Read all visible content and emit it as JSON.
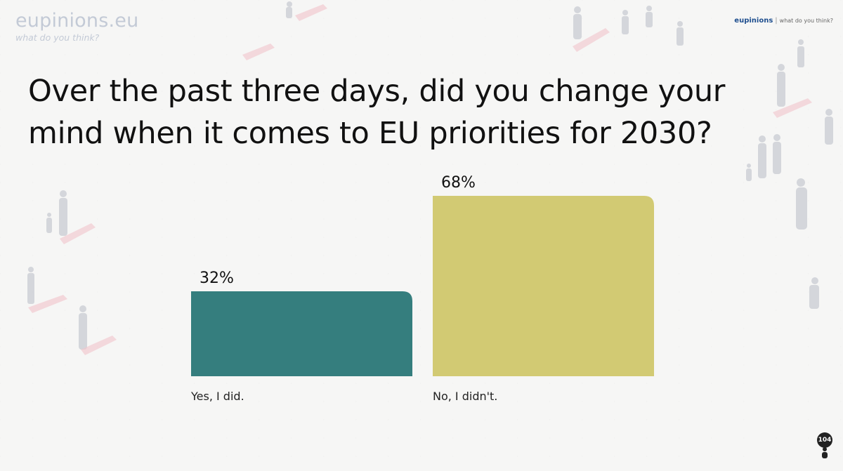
{
  "header": {
    "logo_name": "eupinions.eu",
    "logo_tagline": "what do you think?",
    "corner_brand": "eupinions",
    "corner_sep": "|",
    "corner_tag": "what do you think?"
  },
  "title": "Over the past three days, did you change your mind when it comes to EU priorities for 2030?",
  "viewer_count": "104",
  "colors": {
    "yes": "#357e7e",
    "no": "#d2ca73"
  },
  "chart_data": {
    "type": "bar",
    "title": "Over the past three days, did you change your mind when it comes to EU priorities for 2030?",
    "categories": [
      "Yes, I did.",
      "No, I didn't."
    ],
    "values": [
      32,
      68
    ],
    "data_labels": [
      "32%",
      "68%"
    ],
    "unit": "%",
    "ylim": [
      0,
      68
    ],
    "grid": false,
    "legend": "none"
  }
}
